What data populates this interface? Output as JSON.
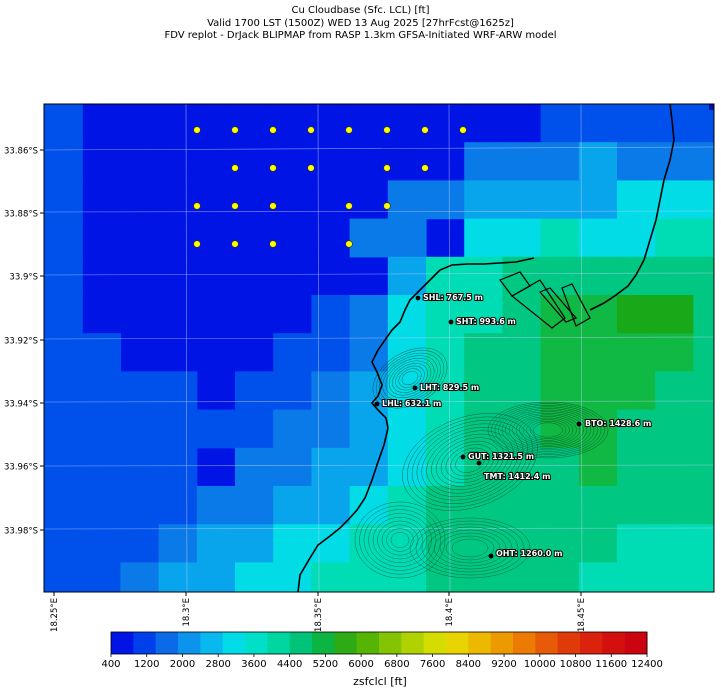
{
  "title": {
    "line1": "Cu Cloudbase (Sfc. LCL) [ft]",
    "line2": "Valid 1700 LST (1500Z) WED 13 Aug 2025 [27hrFcst@1625z]",
    "line3": "FDV replot - DrJack BLIPMAP from RASP 1.3km GFSA-Initiated WRF-ARW model"
  },
  "axes": {
    "lat_labels": [
      "33.86°S",
      "33.88°S",
      "33.9°S",
      "33.92°S",
      "33.94°S",
      "33.96°S",
      "33.98°S"
    ],
    "lon_labels": [
      "18.25°E",
      "18.3°E",
      "18.35°E",
      "18.4°E",
      "18.45°E"
    ]
  },
  "stations": [
    {
      "label": "SHL: 767.5 m"
    },
    {
      "label": "SHT: 993.6 m"
    },
    {
      "label": "LHT: 829.5 m"
    },
    {
      "label": "LHL: 632.1 m"
    },
    {
      "label": "BTO: 1428.6 m"
    },
    {
      "label": "GUT: 1321.5 m"
    },
    {
      "label": "TMT: 1412.4 m"
    },
    {
      "label": "OHT: 1260.0 m"
    }
  ],
  "colorbar": {
    "tick_labels": [
      "400",
      "1200",
      "2000",
      "2800",
      "3600",
      "4400",
      "5200",
      "6000",
      "6800",
      "7600",
      "8400",
      "9200",
      "10000",
      "10800",
      "11600",
      "12400"
    ],
    "label": "zsfclcl [ft]",
    "colors": [
      "#0014e6",
      "#0040ec",
      "#0a6ae8",
      "#0c94ec",
      "#08b8ee",
      "#02dce6",
      "#00e0c8",
      "#00d6a0",
      "#00c278",
      "#0cb442",
      "#2eaa14",
      "#56b404",
      "#84c402",
      "#b0d200",
      "#d4dc00",
      "#e8d400",
      "#ecb800",
      "#ec9a00",
      "#ec7a04",
      "#e65a08",
      "#e03a0a",
      "#da220c",
      "#d4100e",
      "#cc0410"
    ]
  },
  "map_colors": {
    "deep_blue": "#0014e6",
    "blue2": "#0050ec",
    "blue3": "#0a7ae8",
    "blue4": "#08a4ec",
    "cyan": "#02dce6",
    "teal": "#00dcb4",
    "green1": "#00c882",
    "green2": "#10b844",
    "green3": "#18a818"
  }
}
